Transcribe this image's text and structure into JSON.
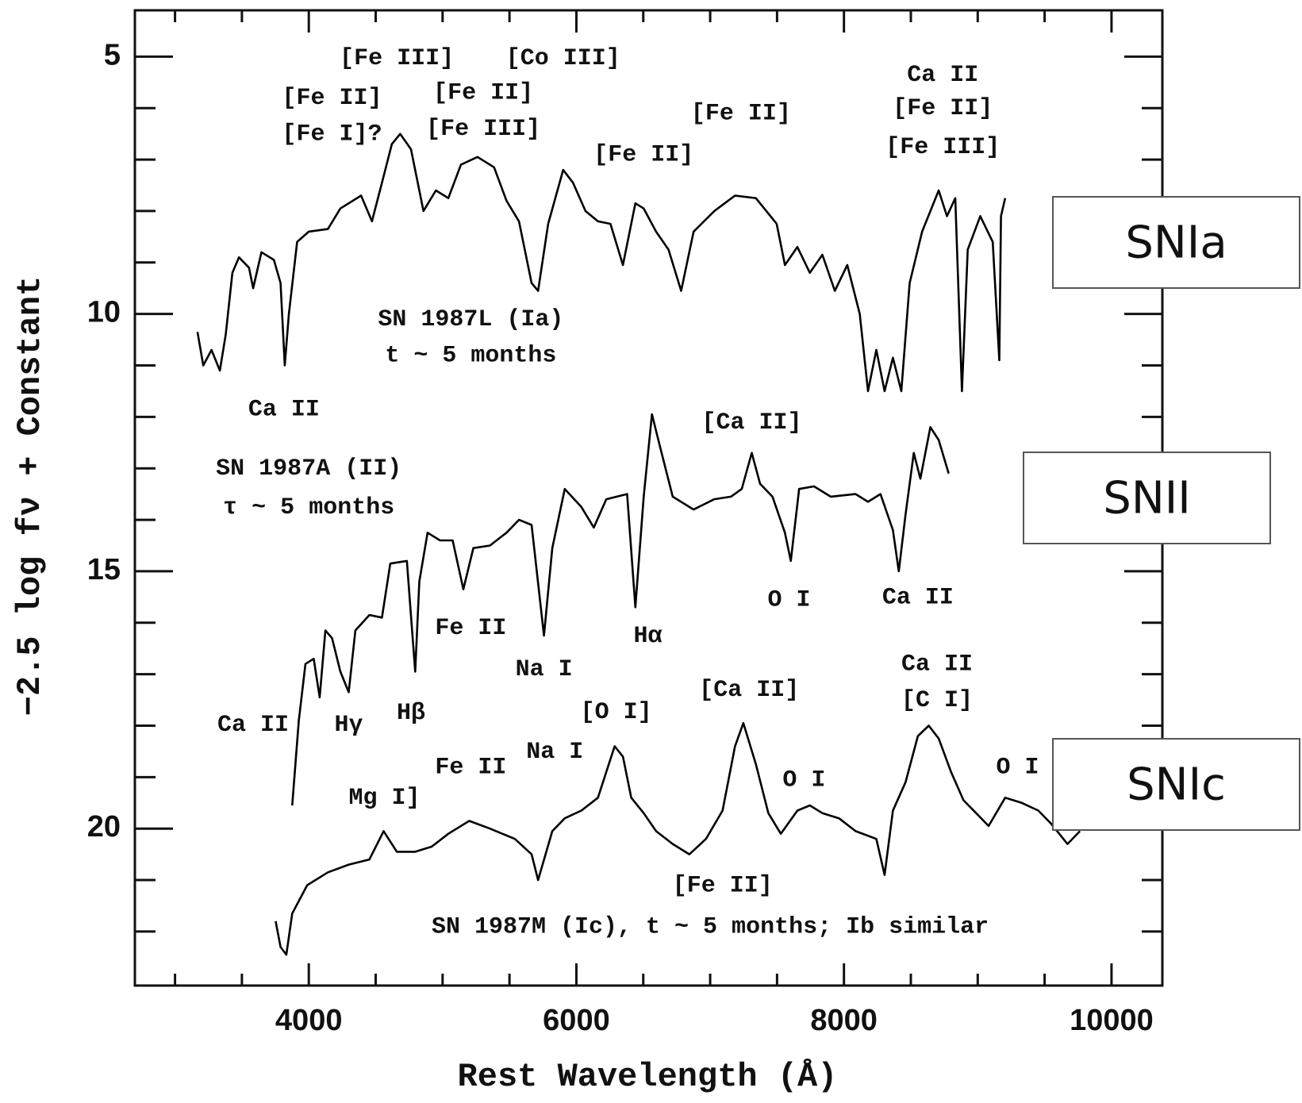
{
  "chart_data": {
    "type": "line",
    "xlabel": "Rest Wavelength (Å)",
    "ylabel": "−2.5 log fν + Constant",
    "xlim": [
      2700,
      10380
    ],
    "ylim": [
      4.1,
      23.05
    ],
    "y_inverted": true,
    "xticks": [
      4000,
      6000,
      8000,
      10000
    ],
    "yticks": [
      5,
      10,
      15,
      20
    ],
    "xminorticks": [
      3000,
      3500,
      4500,
      5000,
      5500,
      6500,
      7000,
      7500,
      8500,
      9000,
      9500
    ],
    "yminorticks": [
      6,
      7,
      8,
      9,
      11,
      12,
      13,
      14,
      16,
      17,
      18,
      19,
      21,
      22
    ],
    "grid": false,
    "series": [
      {
        "name": "SN 1987L (Ia)",
        "color": "#000000",
        "x": [
          3168,
          3211,
          3273,
          3335,
          3379,
          3429,
          3478,
          3553,
          3584,
          3646,
          3739,
          3789,
          3820,
          3851,
          3913,
          4000,
          4143,
          4236,
          4391,
          4472,
          4547,
          4621,
          4683,
          4764,
          4857,
          4950,
          5043,
          5137,
          5261,
          5385,
          5478,
          5571,
          5665,
          5714,
          5789,
          5901,
          5975,
          6068,
          6161,
          6255,
          6348,
          6441,
          6503,
          6596,
          6689,
          6783,
          6876,
          7031,
          7186,
          7342,
          7497,
          7559,
          7652,
          7745,
          7839,
          7932,
          8025,
          8118,
          8180,
          8242,
          8304,
          8366,
          8429,
          8491,
          8584,
          8708,
          8770,
          8832,
          8882,
          8925,
          9019,
          9112,
          9161,
          9174,
          9205
        ],
        "values": [
          10.35,
          11.0,
          10.7,
          11.1,
          10.4,
          9.2,
          8.9,
          9.1,
          9.5,
          8.8,
          8.95,
          9.4,
          11.0,
          10.0,
          8.6,
          8.4,
          8.35,
          7.95,
          7.7,
          8.2,
          7.45,
          6.7,
          6.5,
          6.8,
          8.0,
          7.6,
          7.75,
          7.1,
          6.95,
          7.15,
          7.8,
          8.2,
          9.4,
          9.55,
          8.25,
          7.2,
          7.45,
          8.0,
          8.2,
          8.25,
          9.05,
          7.85,
          7.95,
          8.4,
          8.75,
          9.55,
          8.4,
          8.0,
          7.7,
          7.75,
          8.25,
          9.05,
          8.7,
          9.2,
          8.85,
          9.55,
          9.05,
          10.0,
          11.5,
          10.7,
          11.5,
          10.85,
          11.5,
          9.4,
          8.4,
          7.6,
          8.1,
          7.75,
          11.5,
          8.75,
          8.1,
          8.6,
          10.9,
          8.1,
          7.75
        ]
      },
      {
        "name": "SN 1987A (II)",
        "color": "#000000",
        "x": [
          3876,
          3925,
          3975,
          4037,
          4081,
          4124,
          4174,
          4236,
          4298,
          4348,
          4453,
          4547,
          4609,
          4733,
          4795,
          4826,
          4888,
          4981,
          5075,
          5155,
          5230,
          5354,
          5478,
          5571,
          5665,
          5758,
          5820,
          5913,
          6037,
          6130,
          6224,
          6379,
          6441,
          6503,
          6565,
          6627,
          6720,
          6876,
          7031,
          7155,
          7236,
          7311,
          7373,
          7466,
          7559,
          7603,
          7665,
          7776,
          7901,
          8087,
          8180,
          8273,
          8366,
          8410,
          8460,
          8522,
          8571,
          8646,
          8708,
          8783
        ],
        "values": [
          19.55,
          17.9,
          16.8,
          16.7,
          17.45,
          16.15,
          16.3,
          16.95,
          17.35,
          16.15,
          15.85,
          15.9,
          14.85,
          14.8,
          16.95,
          15.2,
          14.25,
          14.4,
          14.4,
          15.35,
          14.55,
          14.5,
          14.25,
          14.0,
          14.1,
          16.25,
          14.55,
          13.4,
          13.75,
          14.15,
          13.6,
          13.5,
          15.7,
          13.55,
          11.95,
          12.6,
          13.55,
          13.8,
          13.6,
          13.55,
          13.4,
          12.7,
          13.3,
          13.55,
          14.25,
          14.8,
          13.4,
          13.35,
          13.55,
          13.5,
          13.65,
          13.5,
          14.2,
          15.0,
          13.9,
          12.7,
          13.2,
          12.2,
          12.45,
          13.1
        ]
      },
      {
        "name": "SN 1987M (Ic)",
        "color": "#000000",
        "x": [
          3752,
          3789,
          3832,
          3876,
          3988,
          4143,
          4298,
          4453,
          4559,
          4658,
          4795,
          4919,
          5043,
          5199,
          5354,
          5540,
          5665,
          5714,
          5820,
          5913,
          6037,
          6161,
          6286,
          6348,
          6410,
          6503,
          6596,
          6720,
          6845,
          6969,
          7093,
          7186,
          7248,
          7342,
          7435,
          7528,
          7652,
          7745,
          7839,
          7963,
          8087,
          8242,
          8304,
          8366,
          8460,
          8553,
          8634,
          8708,
          8801,
          8894,
          8988,
          9081,
          9205,
          9329,
          9453,
          9547,
          9671,
          9764
        ],
        "values": [
          21.8,
          22.3,
          22.45,
          21.65,
          21.1,
          20.85,
          20.7,
          20.6,
          20.05,
          20.45,
          20.45,
          20.35,
          20.1,
          19.85,
          20.0,
          20.2,
          20.5,
          21.0,
          20.05,
          19.8,
          19.65,
          19.4,
          18.4,
          18.6,
          19.4,
          19.7,
          20.05,
          20.3,
          20.5,
          20.2,
          19.65,
          18.4,
          17.95,
          18.75,
          19.7,
          20.1,
          19.65,
          19.55,
          19.7,
          19.8,
          20.05,
          20.2,
          20.9,
          19.65,
          19.1,
          18.2,
          18.0,
          18.25,
          18.9,
          19.45,
          19.7,
          19.95,
          19.4,
          19.5,
          19.65,
          19.9,
          20.3,
          20.05
        ]
      }
    ],
    "annotations": [
      {
        "text": "[Fe III]",
        "x": 4658,
        "y": 5.03
      },
      {
        "text": "[Fe II]",
        "x": 4174,
        "y": 5.8
      },
      {
        "text": "[Fe I]?",
        "x": 4174,
        "y": 6.5
      },
      {
        "text": "[Fe II]",
        "x": 5304,
        "y": 5.7
      },
      {
        "text": "[Fe III]",
        "x": 5304,
        "y": 6.4
      },
      {
        "text": "[Co III]",
        "x": 5901,
        "y": 5.03
      },
      {
        "text": "[Fe II]",
        "x": 6503,
        "y": 6.9
      },
      {
        "text": "[Fe II]",
        "x": 7230,
        "y": 6.1
      },
      {
        "text": "Ca II",
        "x": 8739,
        "y": 5.35
      },
      {
        "text": "[Fe II]",
        "x": 8739,
        "y": 6.0
      },
      {
        "text": "[Fe III]",
        "x": 8739,
        "y": 6.75
      },
      {
        "text": "SN 1987L (Ia)",
        "x": 5211,
        "y": 10.1
      },
      {
        "text": "t ~ 5 months",
        "x": 5211,
        "y": 10.8
      },
      {
        "text": "Ca II",
        "x": 3814,
        "y": 11.85
      },
      {
        "text": "SN 1987A (II)",
        "x": 4000,
        "y": 13.0
      },
      {
        "text": "τ ~ 5 months",
        "x": 4000,
        "y": 13.75
      },
      {
        "text": "[Ca II]",
        "x": 7311,
        "y": 12.1
      },
      {
        "text": "O I",
        "x": 7590,
        "y": 15.55
      },
      {
        "text": "Ca II",
        "x": 8553,
        "y": 15.5
      },
      {
        "text": "Fe II",
        "x": 5211,
        "y": 16.1
      },
      {
        "text": "Hα",
        "x": 6534,
        "y": 16.25
      },
      {
        "text": "Na I",
        "x": 5758,
        "y": 16.9
      },
      {
        "text": "Ca II",
        "x": 3584,
        "y": 17.98
      },
      {
        "text": "Hγ",
        "x": 4298,
        "y": 17.98
      },
      {
        "text": "Hβ",
        "x": 4764,
        "y": 17.75
      },
      {
        "text": "[O I]",
        "x": 6298,
        "y": 17.73
      },
      {
        "text": "[Ca II]",
        "x": 7292,
        "y": 17.3
      },
      {
        "text": "Ca II",
        "x": 8696,
        "y": 16.8
      },
      {
        "text": "[C I]",
        "x": 8696,
        "y": 17.5
      },
      {
        "text": "Na I",
        "x": 5839,
        "y": 18.5
      },
      {
        "text": "Fe II",
        "x": 5211,
        "y": 18.8
      },
      {
        "text": "O I",
        "x": 7702,
        "y": 19.05
      },
      {
        "text": "O I",
        "x": 9298,
        "y": 18.8
      },
      {
        "text": "Mg I]",
        "x": 4565,
        "y": 19.4
      },
      {
        "text": "[Fe II]",
        "x": 7093,
        "y": 21.1
      },
      {
        "text": "SN 1987M (Ic), t ~ 5 months; Ib similar",
        "x": 7000,
        "y": 21.9
      }
    ],
    "boxed_labels": [
      "SNIa",
      "SNII",
      "SNIc"
    ]
  }
}
